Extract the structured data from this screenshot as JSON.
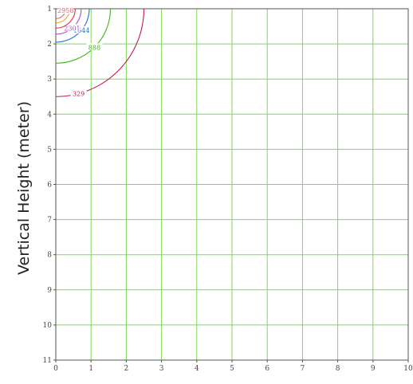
{
  "chart_data": {
    "type": "contour",
    "title": "",
    "xlabel": "",
    "ylabel": "Vertical Height (meter)",
    "xlim": [
      0,
      10
    ],
    "ylim": [
      1,
      11
    ],
    "y_inverted": true,
    "x_ticks": [
      "0",
      "1",
      "2",
      "3",
      "4",
      "5",
      "6",
      "7",
      "8",
      "9",
      "10"
    ],
    "y_ticks": [
      "1",
      "2",
      "3",
      "4",
      "5",
      "6",
      "7",
      "8",
      "9",
      "10",
      "11"
    ],
    "grid": true,
    "grid_color": "#7ed957",
    "contours": [
      {
        "label": "329",
        "radius": 2.5,
        "color": "#c2185b",
        "label_angle_deg": 75
      },
      {
        "label": "888",
        "radius": 1.55,
        "color": "#3cb816",
        "label_angle_deg": 45
      },
      {
        "label": "1644",
        "radius": 0.95,
        "color": "#1f6fd6",
        "label_angle_deg": 40
      },
      {
        "label": "2301",
        "radius": 0.72,
        "color": "#b04fd0",
        "label_angle_deg": 50
      },
      {
        "label": "",
        "radius": 0.55,
        "color": "#e0304a",
        "label_angle_deg": 0
      },
      {
        "label": "",
        "radius": 0.4,
        "color": "#f2a818",
        "label_angle_deg": 0
      },
      {
        "label": "2958",
        "radius": 0.28,
        "color": "#e06080",
        "label_angle_deg": 10
      }
    ]
  }
}
